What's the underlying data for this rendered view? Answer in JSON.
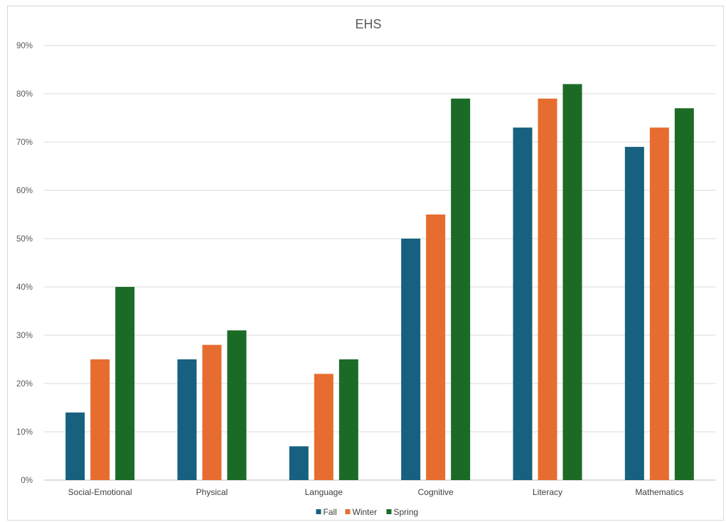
{
  "chart_data": {
    "type": "bar",
    "title": "EHS",
    "xlabel": "",
    "ylabel": "",
    "ylim": [
      0,
      90
    ],
    "yticks": [
      0,
      10,
      20,
      30,
      40,
      50,
      60,
      70,
      80,
      90
    ],
    "ytick_format": "percent",
    "grid": true,
    "legend_position": "bottom",
    "categories": [
      "Social-Emotional",
      "Physical",
      "Language",
      "Cognitive",
      "Literacy",
      "Mathematics"
    ],
    "series": [
      {
        "name": "Fall",
        "color": "#17607f",
        "values": [
          14,
          25,
          7,
          50,
          73,
          69
        ]
      },
      {
        "name": "Winter",
        "color": "#e66d2f",
        "values": [
          25,
          28,
          22,
          55,
          79,
          73
        ]
      },
      {
        "name": "Spring",
        "color": "#1b6b27",
        "values": [
          40,
          31,
          25,
          79,
          82,
          77
        ]
      }
    ]
  }
}
